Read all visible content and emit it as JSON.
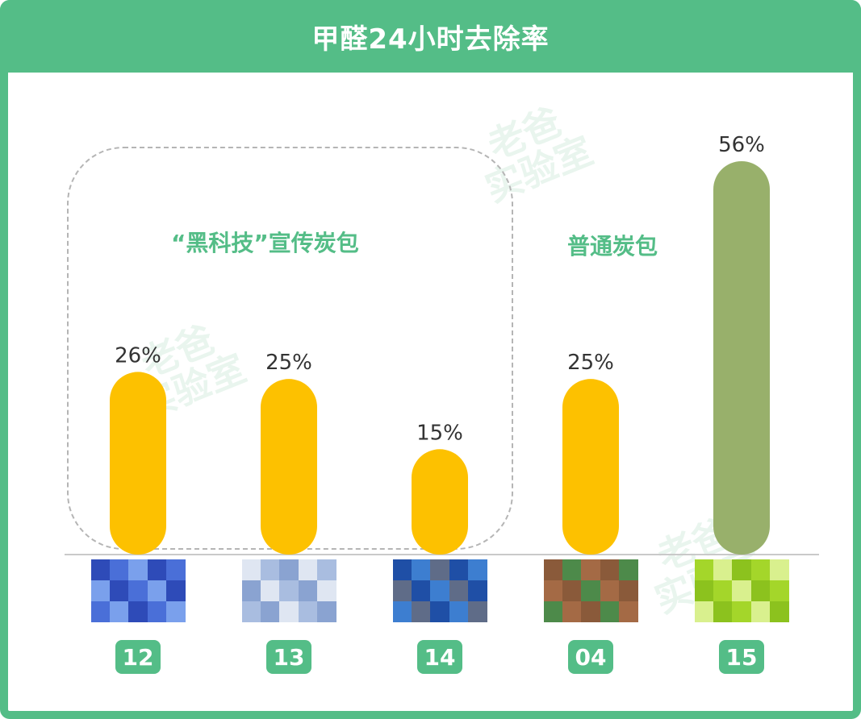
{
  "header": {
    "title": "甲醛24小时去除率"
  },
  "watermark": {
    "text_line1": "老爸",
    "text_line2": "实验室"
  },
  "groups": [
    {
      "label": "“黑科技”宣传炭包"
    },
    {
      "label": "普通炭包"
    }
  ],
  "colors": {
    "frame": "#54bd87",
    "bar_highlight": "#fdc100",
    "bar_best": "#98b06b",
    "value_text": "#333333"
  },
  "chart_data": {
    "type": "bar",
    "title": "甲醛24小时去除率",
    "categories": [
      "12",
      "13",
      "14",
      "04",
      "15"
    ],
    "values": [
      26,
      25,
      15,
      25,
      56
    ],
    "value_labels": [
      "26%",
      "25%",
      "15%",
      "25%",
      "56%"
    ],
    "bar_colors": [
      "#fdc100",
      "#fdc100",
      "#fdc100",
      "#fdc100",
      "#98b06b"
    ],
    "ylim": [
      0,
      60
    ],
    "grid": false,
    "product_thumbnails": [
      "blue-package",
      "light-blue-package",
      "dark-blue-package",
      "brown-green-package",
      "lime-green-package"
    ]
  }
}
